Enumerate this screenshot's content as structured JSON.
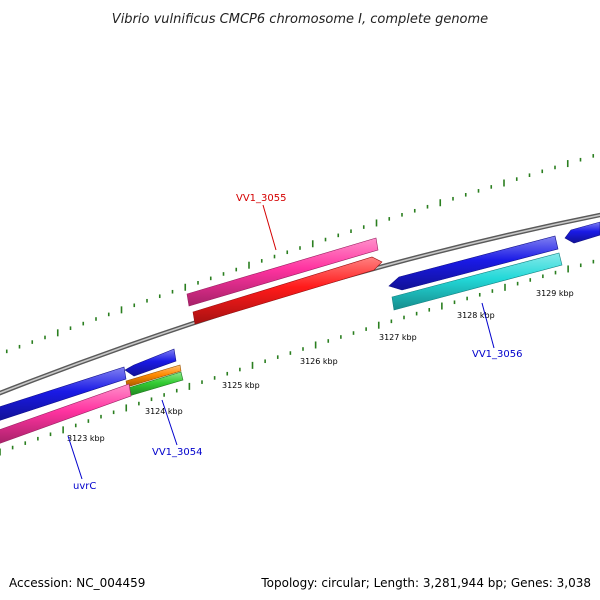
{
  "title": "Vibrio vulnificus CMCP6 chromosome I, complete genome",
  "footer": {
    "accession": "Accession: NC_004459",
    "topology": "Topology: circular; Length: 3,281,944 bp; Genes: 3,038"
  },
  "colors": {
    "backbone": "#8a8a8a",
    "tick": "#2a7f1f",
    "gene_label_red": "#d40000",
    "gene_label_blue": "#0000cc",
    "pink": "#ff33a0",
    "red": "#ff1a1a",
    "blue": "#1a1ae6",
    "cyan": "#22d8d8",
    "orange": "#ff8a00",
    "green": "#33cc33"
  },
  "ticks": [
    {
      "label": "3123 kbp"
    },
    {
      "label": "3124 kbp"
    },
    {
      "label": "3125 kbp"
    },
    {
      "label": "3126 kbp"
    },
    {
      "label": "3127 kbp"
    },
    {
      "label": "3128 kbp"
    },
    {
      "label": "3129 kbp"
    }
  ],
  "gene_labels": [
    {
      "name": "VV1_3055",
      "color": "red"
    },
    {
      "name": "VV1_3056",
      "color": "blue"
    },
    {
      "name": "VV1_3054",
      "color": "blue"
    },
    {
      "name": "uvrC",
      "color": "blue"
    }
  ],
  "features": [
    {
      "id": "pink-upper",
      "color": "pink"
    },
    {
      "id": "red-lower",
      "color": "red"
    },
    {
      "id": "blue-right-1",
      "color": "blue"
    },
    {
      "id": "blue-right-2",
      "color": "blue"
    },
    {
      "id": "cyan-right",
      "color": "cyan"
    },
    {
      "id": "blue-left-long",
      "color": "blue"
    },
    {
      "id": "blue-left-short",
      "color": "blue"
    },
    {
      "id": "orange-left",
      "color": "orange"
    },
    {
      "id": "green-left",
      "color": "green"
    },
    {
      "id": "pink-left",
      "color": "pink"
    }
  ]
}
